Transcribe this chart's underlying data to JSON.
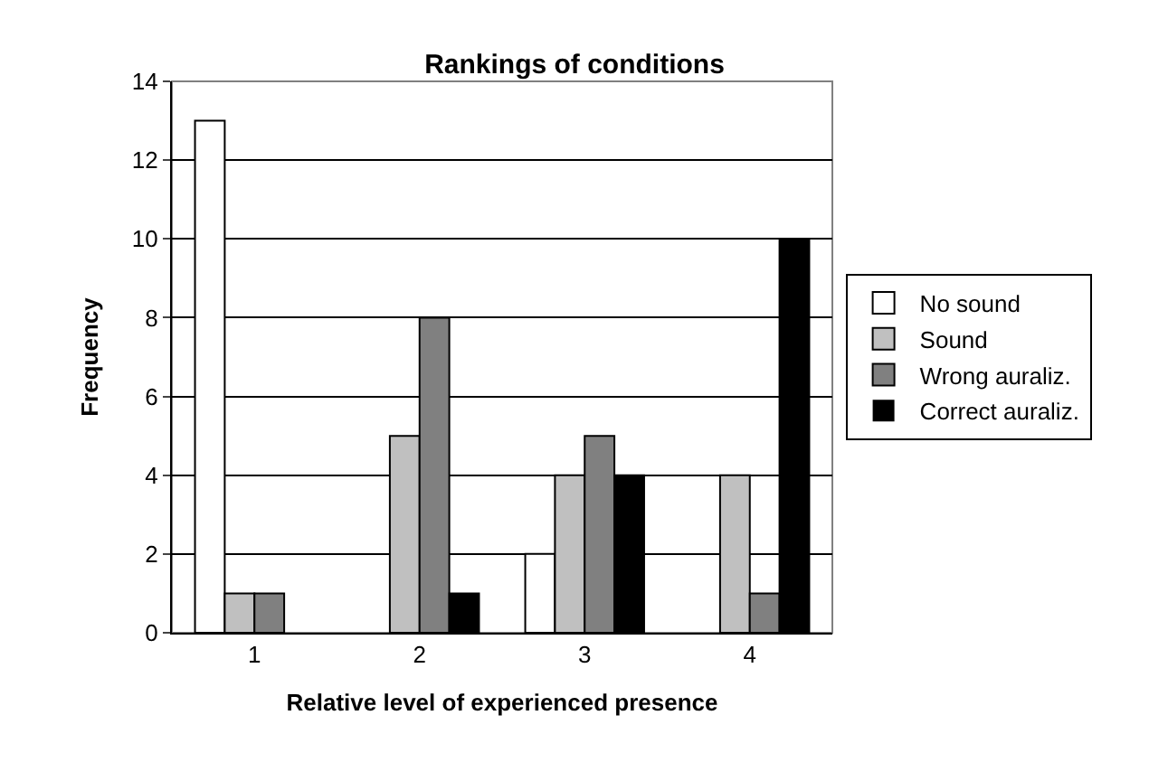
{
  "chart_data": {
    "type": "bar",
    "title": "Rankings of conditions",
    "xlabel": "Relative level of experienced presence",
    "ylabel": "Frequency",
    "categories": [
      "1",
      "2",
      "3",
      "4"
    ],
    "series": [
      {
        "name": "No sound",
        "color": "#ffffff",
        "values": [
          13,
          0,
          2,
          0
        ]
      },
      {
        "name": "Sound",
        "color": "#c0c0c0",
        "values": [
          1,
          5,
          4,
          4
        ]
      },
      {
        "name": "Wrong auraliz.",
        "color": "#808080",
        "values": [
          1,
          8,
          5,
          1
        ]
      },
      {
        "name": "Correct auraliz.",
        "color": "#000000",
        "values": [
          0,
          1,
          4,
          10
        ]
      }
    ],
    "ylim": [
      0,
      14
    ],
    "yticks": [
      0,
      2,
      4,
      6,
      8,
      10,
      12,
      14
    ],
    "grid": "y",
    "legend": "right"
  }
}
